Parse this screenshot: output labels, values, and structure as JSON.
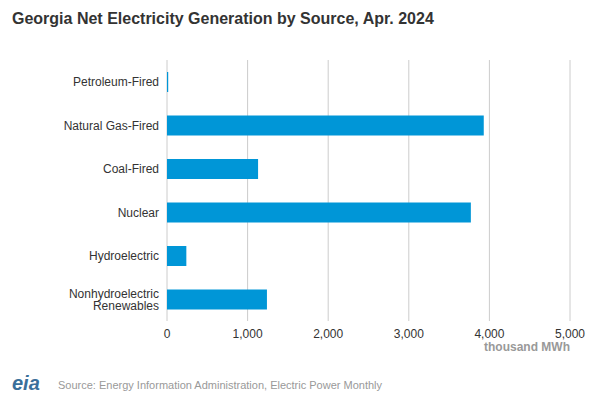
{
  "chart_data": {
    "type": "bar",
    "title": "Georgia Net Electricity Generation by Source, Apr. 2024",
    "orientation": "horizontal",
    "categories": [
      "Petroleum-Fired",
      "Natural Gas-Fired",
      "Coal-Fired",
      "Nuclear",
      "Hydroelectric",
      "Nonhydroelectric Renewables"
    ],
    "values": [
      15,
      3930,
      1130,
      3770,
      240,
      1240
    ],
    "color": "#0096d7",
    "xlabel": "thousand MWh",
    "xlim": [
      0,
      5000
    ],
    "xticks": [
      0,
      {
        "value": 1000,
        "label": "1,000"
      },
      {
        "value": 2000,
        "label": "2,000"
      },
      {
        "value": 3000,
        "label": "3,000"
      },
      {
        "value": 4000,
        "label": "4,000"
      },
      {
        "value": 5000,
        "label": "5,000"
      }
    ],
    "grid": true,
    "logo": "eia",
    "source": "Source: Energy Information Administration, Electric Power Monthly"
  }
}
